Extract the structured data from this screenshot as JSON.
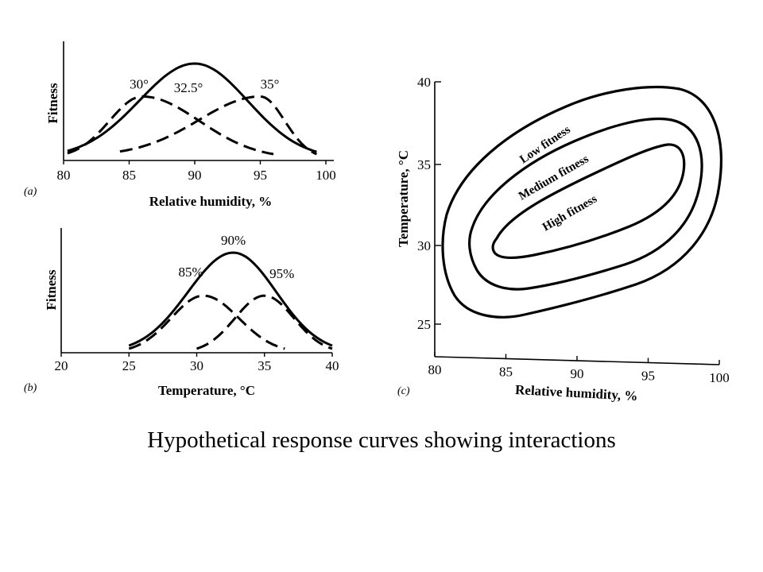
{
  "caption": "Hypothetical response curves showing  interactions",
  "chart_data": [
    {
      "panel": "(a)",
      "type": "line",
      "xlabel": "Relative humidity, %",
      "ylabel": "Fitness",
      "xlim": [
        80,
        100
      ],
      "ticks": [
        80,
        85,
        90,
        95,
        100
      ],
      "ytick_labels": [],
      "series": [
        {
          "name": "30°",
          "style": "dashed",
          "peak_x": 86,
          "peak_y": 0.66,
          "x_start": 80.3,
          "x_end": 96,
          "y_start": 0.03,
          "y_end": 0.02
        },
        {
          "name": "32.5°",
          "style": "solid",
          "peak_x": 90,
          "peak_y": 1.0,
          "x_start": 80.3,
          "x_end": 99.3,
          "y_start": 0.03,
          "y_end": 0.02
        },
        {
          "name": "35°",
          "style": "dashed",
          "peak_x": 95,
          "peak_y": 0.66,
          "x_start": 84.3,
          "x_end": 99.3,
          "y_start": 0.05,
          "y_end": 0.02
        }
      ]
    },
    {
      "panel": "(b)",
      "type": "line",
      "xlabel": "Temperature, °C",
      "ylabel": "Fitness",
      "xlim": [
        20,
        40
      ],
      "ticks": [
        20,
        25,
        30,
        35,
        40
      ],
      "ytick_labels": [],
      "series": [
        {
          "name": "85%",
          "style": "dashed",
          "peak_x": 30.5,
          "peak_y": 0.57,
          "x_start": 25,
          "x_end": 36.5,
          "y_start": 0.0,
          "y_end": 0.0
        },
        {
          "name": "90%",
          "style": "solid",
          "peak_x": 32.7,
          "peak_y": 1.0,
          "x_start": 25,
          "x_end": 40,
          "y_start": 0.0,
          "y_end": 0.0
        },
        {
          "name": "95%",
          "style": "dashed",
          "peak_x": 35,
          "peak_y": 0.57,
          "x_start": 30,
          "x_end": 40,
          "y_start": 0.0,
          "y_end": 0.0
        }
      ]
    },
    {
      "panel": "(c)",
      "type": "contour",
      "xlabel": "Relative humidity, %",
      "ylabel": "Temperature, °C",
      "xlim": [
        80,
        100
      ],
      "ylim": [
        22.5,
        40
      ],
      "xticks": [
        80,
        85,
        90,
        95,
        100
      ],
      "yticks": [
        25,
        30,
        35,
        40
      ],
      "contours": [
        {
          "label": "Low fitness"
        },
        {
          "label": "Medium fitness"
        },
        {
          "label": "High fitness"
        }
      ]
    }
  ]
}
